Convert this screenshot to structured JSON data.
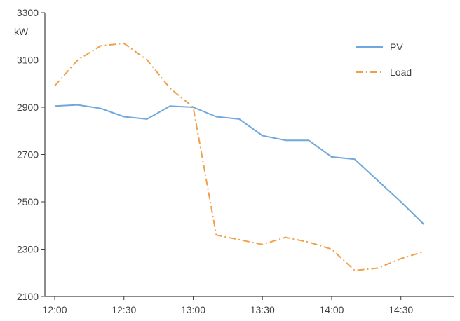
{
  "chart_data": {
    "type": "line",
    "title": "",
    "ylabel": "kW",
    "xlabel": "",
    "ylim": [
      2100,
      3300
    ],
    "yticks": [
      2100,
      2300,
      2500,
      2700,
      2900,
      3100,
      3300
    ],
    "xlim": [
      "12:00",
      "14:40"
    ],
    "xticks": [
      "12:00",
      "12:30",
      "13:00",
      "13:30",
      "14:00",
      "14:30"
    ],
    "grid": false,
    "legend": "top-right",
    "x": [
      "12:00",
      "12:10",
      "12:20",
      "12:30",
      "12:40",
      "12:50",
      "13:00",
      "13:10",
      "13:20",
      "13:30",
      "13:40",
      "13:50",
      "14:00",
      "14:10",
      "14:20",
      "14:30",
      "14:40"
    ],
    "series": [
      {
        "name": "PV",
        "color": "#6fa8dc",
        "style": "solid",
        "values": [
          2905,
          2910,
          2895,
          2860,
          2850,
          2905,
          2900,
          2860,
          2850,
          2780,
          2760,
          2760,
          2690,
          2680,
          2590,
          2500,
          2405
        ]
      },
      {
        "name": "Load",
        "color": "#f0a04b",
        "style": "dash-dot",
        "values": [
          2990,
          3100,
          3160,
          3170,
          3100,
          2980,
          2900,
          2360,
          2340,
          2320,
          2350,
          2330,
          2300,
          2210,
          2220,
          2260,
          2290
        ]
      }
    ]
  }
}
